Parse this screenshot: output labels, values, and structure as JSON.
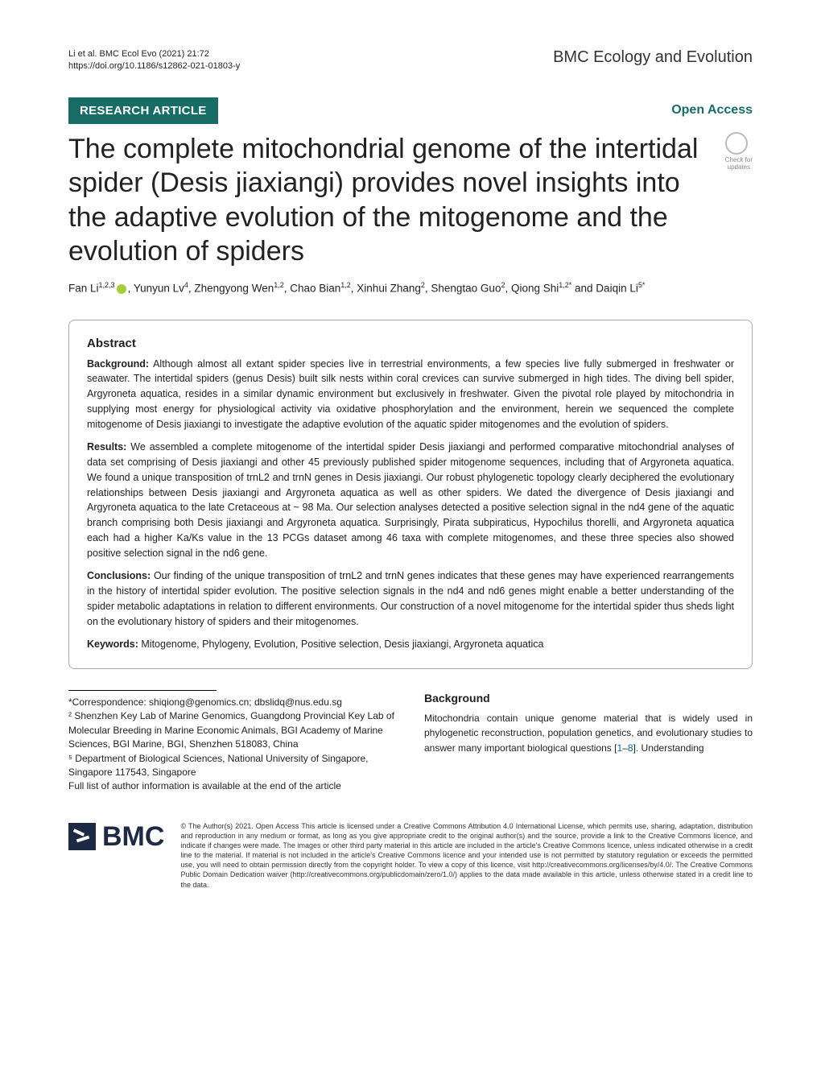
{
  "header": {
    "citation": "Li et al. BMC Ecol Evo        (2021) 21:72",
    "doi": "https://doi.org/10.1186/s12862-021-01803-y",
    "journal": "BMC Ecology and Evolution"
  },
  "banner": {
    "article_type": "RESEARCH ARTICLE",
    "open_access": "Open Access"
  },
  "crossmark": {
    "line1": "Check for",
    "line2": "updates"
  },
  "title": "The complete mitochondrial genome of the intertidal spider (Desis jiaxiangi) provides novel insights into the adaptive evolution of the mitogenome and the evolution of spiders",
  "authors_html": "Fan Li<sup>1,2,3</sup><span class='orcid'></span>, Yunyun Lv<sup>4</sup>, Zhengyong Wen<sup>1,2</sup>, Chao Bian<sup>1,2</sup>, Xinhui Zhang<sup>2</sup>, Shengtao Guo<sup>2</sup>, Qiong Shi<sup>1,2*</sup> and Daiqin Li<sup>5*</sup>",
  "abstract": {
    "heading": "Abstract",
    "background_label": "Background:",
    "background_text": " Although almost all extant spider species live in terrestrial environments, a few species live fully submerged in freshwater or seawater. The intertidal spiders (genus Desis) built silk nests within coral crevices can survive submerged in high tides. The diving bell spider, Argyroneta aquatica, resides in a similar dynamic environment but exclusively in freshwater. Given the pivotal role played by mitochondria in supplying most energy for physiological activity via oxidative phosphorylation and the environment, herein we sequenced the complete mitogenome of Desis jiaxiangi to investigate the adaptive evolution of the aquatic spider mitogenomes and the evolution of spiders.",
    "results_label": "Results:",
    "results_text": " We assembled a complete mitogenome of the intertidal spider Desis jiaxiangi and performed comparative mitochondrial analyses of data set comprising of Desis jiaxiangi and other 45 previously published spider mitogenome sequences, including that of Argyroneta aquatica. We found a unique transposition of trnL2 and trnN genes in Desis jiaxiangi. Our robust phylogenetic topology clearly deciphered the evolutionary relationships between Desis jiaxiangi and Argyroneta aquatica as well as other spiders. We dated the divergence of Desis jiaxiangi and Argyroneta aquatica to the late Cretaceous at ~ 98 Ma. Our selection analyses detected a positive selection signal in the nd4 gene of the aquatic branch comprising both Desis jiaxiangi and Argyroneta aquatica. Surprisingly, Pirata subpiraticus, Hypochilus thorelli, and Argyroneta aquatica each had a higher Ka/Ks value in the 13 PCGs dataset among 46 taxa with complete mitogenomes, and these three species also showed positive selection signal in the nd6 gene.",
    "conclusions_label": "Conclusions:",
    "conclusions_text": " Our finding of the unique transposition of trnL2 and trnN genes indicates that these genes may have experienced rearrangements in the history of intertidal spider evolution. The positive selection signals in the nd4 and nd6 genes might enable a better understanding of the spider metabolic adaptations in relation to different environments. Our construction of a novel mitogenome for the intertidal spider thus sheds light on the evolutionary history of spiders and their mitogenomes.",
    "keywords_label": "Keywords:",
    "keywords_text": " Mitogenome, Phylogeny, Evolution, Positive selection, Desis jiaxiangi, Argyroneta aquatica"
  },
  "correspondence": {
    "emails": "*Correspondence: shiqiong@genomics.cn; dbslidq@nus.edu.sg",
    "aff2": "² Shenzhen Key Lab of Marine Genomics, Guangdong Provincial Key Lab of Molecular Breeding in Marine Economic Animals, BGI Academy of Marine Sciences, BGI Marine, BGI, Shenzhen 518083, China",
    "aff5": "⁵ Department of Biological Sciences, National University of Singapore, Singapore 117543, Singapore",
    "note": "Full list of author information is available at the end of the article"
  },
  "background": {
    "heading": "Background",
    "text_part1": "Mitochondria contain unique genome material that is widely used in phylogenetic reconstruction, population genetics, and evolutionary studies to answer many important biological questions [",
    "ref1": "1",
    "dash": "–",
    "ref2": "8",
    "text_part2": "]. Understanding"
  },
  "footer": {
    "bmc": "BMC",
    "license_text": "© The Author(s) 2021. Open Access This article is licensed under a Creative Commons Attribution 4.0 International License, which permits use, sharing, adaptation, distribution and reproduction in any medium or format, as long as you give appropriate credit to the original author(s) and the source, provide a link to the Creative Commons licence, and indicate if changes were made. The images or other third party material in this article are included in the article's Creative Commons licence, unless indicated otherwise in a credit line to the material. If material is not included in the article's Creative Commons licence and your intended use is not permitted by statutory regulation or exceeds the permitted use, you will need to obtain permission directly from the copyright holder. To view a copy of this licence, visit http://creativecommons.org/licenses/by/4.0/. The Creative Commons Public Domain Dedication waiver (http://creativecommons.org/publicdomain/zero/1.0/) applies to the data made available in this article, unless otherwise stated in a credit line to the data."
  },
  "colors": {
    "brand_teal": "#186c66",
    "link_blue": "#0066a8",
    "bmc_navy": "#1e2a44",
    "orcid_green": "#a6ce39"
  }
}
